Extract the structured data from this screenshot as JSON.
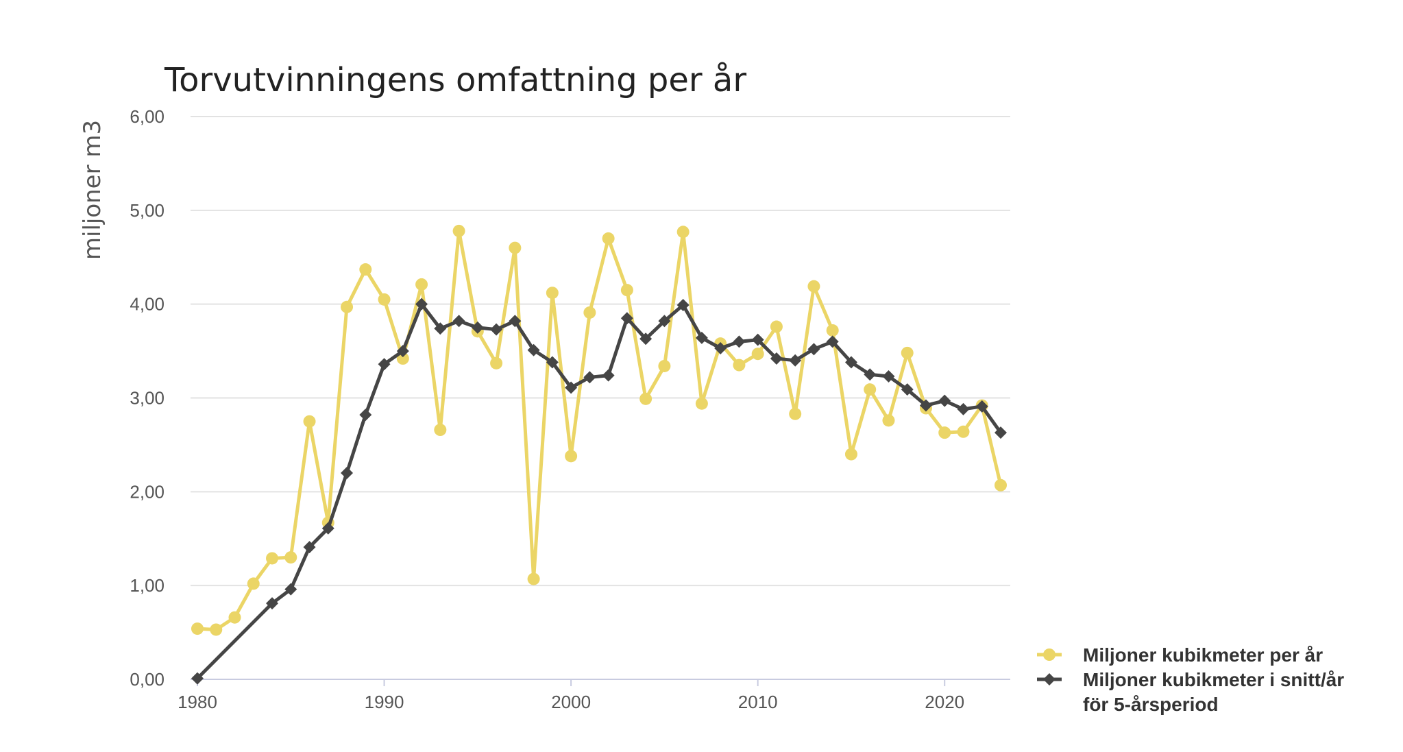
{
  "chart_data": {
    "type": "line",
    "title": "Torvutvinningens omfattning per år",
    "ylabel": "miljoner m3",
    "xlabel": "",
    "ylim": [
      0,
      6
    ],
    "xlim": [
      1980,
      2023
    ],
    "y_ticks": [
      "0,00",
      "1,00",
      "2,00",
      "3,00",
      "4,00",
      "5,00",
      "6,00"
    ],
    "x_ticks": [
      "1980",
      "1990",
      "2000",
      "2010",
      "2020"
    ],
    "grid": true,
    "legend_position": "bottom-right",
    "series": [
      {
        "name": "Miljoner kubikmeter per år",
        "color": "#ebd566",
        "marker": "circle",
        "x": [
          1980,
          1981,
          1982,
          1983,
          1984,
          1985,
          1986,
          1987,
          1988,
          1989,
          1990,
          1991,
          1992,
          1993,
          1994,
          1995,
          1996,
          1997,
          1998,
          1999,
          2000,
          2001,
          2002,
          2003,
          2004,
          2005,
          2006,
          2007,
          2008,
          2009,
          2010,
          2011,
          2012,
          2013,
          2014,
          2015,
          2016,
          2017,
          2018,
          2019,
          2020,
          2021,
          2022,
          2023
        ],
        "values": [
          0.54,
          0.53,
          0.66,
          1.02,
          1.29,
          1.3,
          2.75,
          1.67,
          3.97,
          4.37,
          4.05,
          3.42,
          4.21,
          2.66,
          4.78,
          3.71,
          3.37,
          4.6,
          1.07,
          4.12,
          2.38,
          3.91,
          4.7,
          4.15,
          2.99,
          3.34,
          4.77,
          2.94,
          3.58,
          3.35,
          3.47,
          3.76,
          2.83,
          4.19,
          3.72,
          2.4,
          3.09,
          2.76,
          3.48,
          2.89,
          2.63,
          2.64,
          2.92,
          2.07
        ]
      },
      {
        "name": "Miljoner kubikmeter i snitt/år för 5-årsperiod",
        "name_lines": [
          "Miljoner kubikmeter i snitt/år",
          "för 5-årsperiod"
        ],
        "color": "#454545",
        "marker": "diamond",
        "x": [
          1980,
          1984,
          1985,
          1986,
          1987,
          1988,
          1989,
          1990,
          1991,
          1992,
          1993,
          1994,
          1995,
          1996,
          1997,
          1998,
          1999,
          2000,
          2001,
          2002,
          2003,
          2004,
          2005,
          2006,
          2007,
          2008,
          2009,
          2010,
          2011,
          2012,
          2013,
          2014,
          2015,
          2016,
          2017,
          2018,
          2019,
          2020,
          2021,
          2022,
          2023
        ],
        "values": [
          0.01,
          0.81,
          0.96,
          1.41,
          1.61,
          2.2,
          2.82,
          3.36,
          3.5,
          4.0,
          3.74,
          3.82,
          3.75,
          3.73,
          3.82,
          3.51,
          3.38,
          3.11,
          3.22,
          3.24,
          3.85,
          3.63,
          3.82,
          3.99,
          3.64,
          3.53,
          3.6,
          3.62,
          3.42,
          3.4,
          3.52,
          3.6,
          3.38,
          3.25,
          3.23,
          3.09,
          2.92,
          2.97,
          2.88,
          2.91,
          2.63
        ]
      }
    ]
  }
}
